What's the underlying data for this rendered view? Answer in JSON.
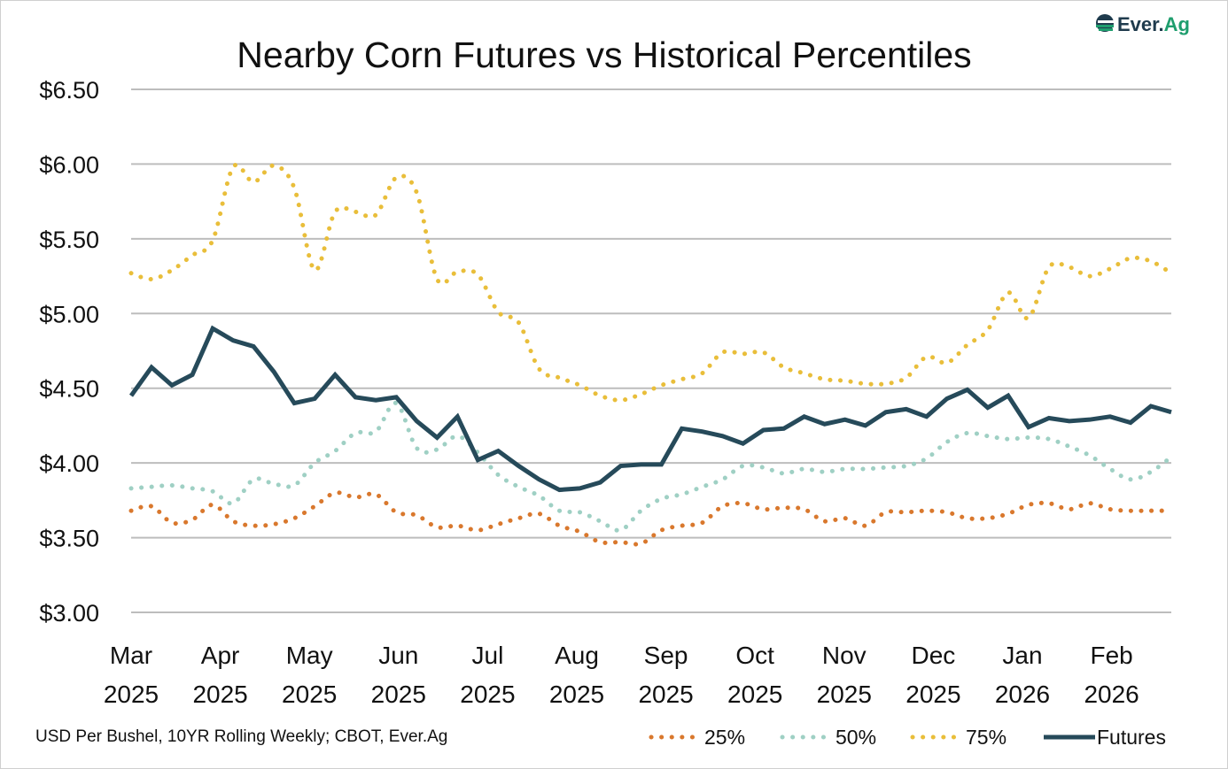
{
  "logo": {
    "text": "Ever.Ag",
    "colors": {
      "dark": "#1f3b4d",
      "green": "#1f9e6e"
    }
  },
  "chart_data": {
    "type": "line",
    "title": "Nearby Corn Futures vs Historical Percentiles",
    "source_note": "USD Per Bushel, 10YR Rolling Weekly; CBOT, Ever.Ag",
    "xlabel": "",
    "ylabel": "",
    "ylim": [
      3.0,
      6.5
    ],
    "y_ticks": [
      "$3.00",
      "$3.50",
      "$4.00",
      "$4.50",
      "$5.00",
      "$5.50",
      "$6.00",
      "$6.50"
    ],
    "y_tick_values": [
      3.0,
      3.5,
      4.0,
      4.5,
      5.0,
      5.5,
      6.0,
      6.5
    ],
    "x_tick_labels": [
      [
        "Mar",
        "2025"
      ],
      [
        "Apr",
        "2025"
      ],
      [
        "May",
        "2025"
      ],
      [
        "Jun",
        "2025"
      ],
      [
        "Jul",
        "2025"
      ],
      [
        "Aug",
        "2025"
      ],
      [
        "Sep",
        "2025"
      ],
      [
        "Oct",
        "2025"
      ],
      [
        "Nov",
        "2025"
      ],
      [
        "Dec",
        "2025"
      ],
      [
        "Jan",
        "2026"
      ],
      [
        "Feb",
        "2026"
      ]
    ],
    "x_frequency": "weekly",
    "grid": "horizontal",
    "legend_position": "bottom-right",
    "series": [
      {
        "name": "25%",
        "style": "dotted",
        "color": "#d9782d",
        "values": [
          3.68,
          3.71,
          3.6,
          3.62,
          3.72,
          3.61,
          3.58,
          3.59,
          3.63,
          3.71,
          3.8,
          3.77,
          3.79,
          3.67,
          3.65,
          3.57,
          3.58,
          3.55,
          3.59,
          3.63,
          3.66,
          3.58,
          3.54,
          3.47,
          3.47,
          3.46,
          3.55,
          3.58,
          3.6,
          3.71,
          3.73,
          3.69,
          3.7,
          3.69,
          3.61,
          3.63,
          3.58,
          3.67,
          3.67,
          3.68,
          3.67,
          3.63,
          3.63,
          3.66,
          3.72,
          3.73,
          3.69,
          3.73,
          3.69,
          3.68,
          3.68,
          3.68
        ]
      },
      {
        "name": "50%",
        "style": "dotted",
        "color": "#9fd0c4",
        "values": [
          3.83,
          3.84,
          3.85,
          3.83,
          3.81,
          3.73,
          3.89,
          3.86,
          3.85,
          4.0,
          4.08,
          4.2,
          4.21,
          4.4,
          4.1,
          4.09,
          4.18,
          4.07,
          3.92,
          3.84,
          3.78,
          3.68,
          3.67,
          3.61,
          3.55,
          3.68,
          3.76,
          3.79,
          3.84,
          3.89,
          3.98,
          3.97,
          3.93,
          3.96,
          3.94,
          3.96,
          3.96,
          3.97,
          3.98,
          4.03,
          4.14,
          4.2,
          4.18,
          4.16,
          4.17,
          4.16,
          4.11,
          4.05,
          3.96,
          3.89,
          3.94,
          4.04
        ]
      },
      {
        "name": "75%",
        "style": "dotted",
        "color": "#e9be3a",
        "values": [
          5.27,
          5.23,
          5.29,
          5.39,
          5.49,
          5.98,
          5.88,
          5.99,
          5.84,
          5.29,
          5.68,
          5.68,
          5.66,
          5.91,
          5.81,
          5.23,
          5.28,
          5.26,
          5.01,
          4.94,
          4.63,
          4.57,
          4.52,
          4.45,
          4.42,
          4.46,
          4.52,
          4.56,
          4.6,
          4.74,
          4.73,
          4.74,
          4.64,
          4.6,
          4.56,
          4.55,
          4.53,
          4.53,
          4.57,
          4.71,
          4.67,
          4.79,
          4.89,
          5.14,
          4.97,
          5.31,
          5.31,
          5.25,
          5.3,
          5.37,
          5.35,
          5.27
        ]
      },
      {
        "name": "Futures",
        "style": "solid",
        "color": "#264a5a",
        "values": [
          4.45,
          4.64,
          4.52,
          4.59,
          4.9,
          4.82,
          4.78,
          4.61,
          4.4,
          4.43,
          4.59,
          4.44,
          4.42,
          4.44,
          4.28,
          4.17,
          4.31,
          4.02,
          4.08,
          3.98,
          3.89,
          3.82,
          3.83,
          3.87,
          3.98,
          3.99,
          3.99,
          4.23,
          4.21,
          4.18,
          4.13,
          4.22,
          4.23,
          4.31,
          4.26,
          4.29,
          4.25,
          4.34,
          4.36,
          4.31,
          4.43,
          4.49,
          4.37,
          4.45,
          4.24,
          4.3,
          4.28,
          4.29,
          4.31,
          4.27,
          4.38,
          4.34
        ]
      }
    ]
  }
}
